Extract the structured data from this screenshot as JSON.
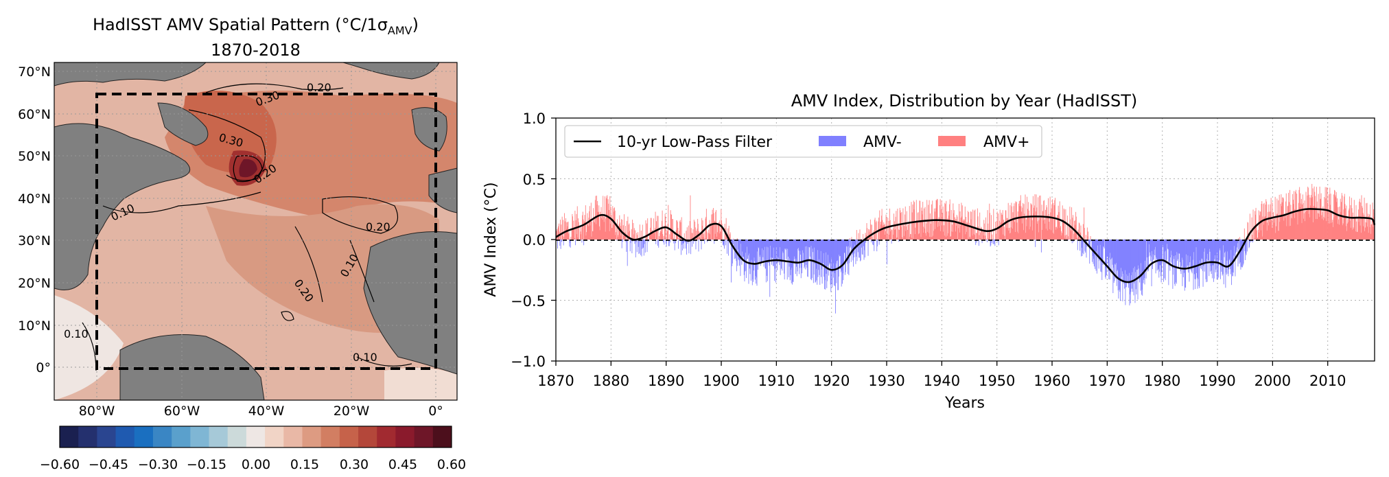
{
  "map_panel": {
    "title_line1": "HadISST AMV Spatial Pattern (°C/1σ",
    "title_sub": "AMV",
    "title_tail": ")",
    "title_line2": "1870-2018",
    "lon_labels": [
      "80°W",
      "60°W",
      "40°W",
      "20°W",
      "0°"
    ],
    "lat_labels": [
      "70°N",
      "60°N",
      "50°N",
      "40°N",
      "30°N",
      "20°N",
      "10°N",
      "0°"
    ],
    "contour_labels": [
      "0.20",
      "0.30",
      "0.30",
      "0.20",
      "0.10",
      "0.20",
      "0.10",
      "0.20",
      "0.10",
      "0.10"
    ],
    "colorbar": {
      "ticks": [
        "−0.60",
        "−0.45",
        "−0.30",
        "−0.15",
        "0.00",
        "0.15",
        "0.30",
        "0.45",
        "0.60"
      ],
      "colors": [
        "#1a2050",
        "#24306e",
        "#2a4590",
        "#1f5ab0",
        "#1a6fc0",
        "#3a86c4",
        "#5aa0cc",
        "#7fb6d4",
        "#a6c9d8",
        "#ccdada",
        "#eee7e4",
        "#f1d4c6",
        "#e9b8a6",
        "#dd9b82",
        "#d27e62",
        "#c6624a",
        "#b4473a",
        "#a12a30",
        "#8a1a2c",
        "#6e1628",
        "#4c0f1c"
      ]
    },
    "colors": {
      "land": "#808080",
      "ocean_base": "#e2b5a4",
      "box": "#000000"
    }
  },
  "chart_data": {
    "type": "bar",
    "title": "AMV Index, Distribution by Year (HadISST)",
    "xlabel": "Years",
    "ylabel": "AMV Index (°C)",
    "xlim": [
      1870,
      2018.5
    ],
    "ylim": [
      -1.0,
      1.0
    ],
    "xticks": [
      1870,
      1880,
      1890,
      1900,
      1910,
      1920,
      1930,
      1940,
      1950,
      1960,
      1970,
      1980,
      1990,
      2000,
      2010
    ],
    "yticks": [
      "1.0",
      "0.5",
      "0.0",
      "−0.5",
      "−1.0"
    ],
    "grid": true,
    "legend_position": "top-left",
    "legend": [
      "10-yr Low-Pass Filter",
      "AMV-",
      "AMV+"
    ],
    "colors": {
      "positive": "#ff8080",
      "negative": "#8080ff",
      "filter": "#000000"
    },
    "low_pass_filter": {
      "x": [
        1870,
        1872,
        1875,
        1878,
        1880,
        1882,
        1884,
        1886,
        1888,
        1890,
        1892,
        1894,
        1896,
        1898,
        1900,
        1902,
        1904,
        1906,
        1908,
        1910,
        1912,
        1914,
        1916,
        1918,
        1920,
        1922,
        1924,
        1926,
        1928,
        1930,
        1933,
        1936,
        1939,
        1942,
        1945,
        1948,
        1950,
        1952,
        1954,
        1957,
        1960,
        1962,
        1964,
        1966,
        1968,
        1970,
        1972,
        1974,
        1976,
        1978,
        1980,
        1982,
        1984,
        1986,
        1988,
        1990,
        1992,
        1994,
        1996,
        1998,
        2000,
        2002,
        2004,
        2006,
        2008,
        2010,
        2012,
        2014,
        2016,
        2018,
        2018.5
      ],
      "y": [
        0.02,
        0.07,
        0.12,
        0.2,
        0.17,
        0.06,
        0.0,
        0.02,
        0.07,
        0.1,
        0.04,
        -0.01,
        0.04,
        0.12,
        0.11,
        -0.05,
        -0.17,
        -0.2,
        -0.18,
        -0.17,
        -0.18,
        -0.19,
        -0.17,
        -0.2,
        -0.25,
        -0.21,
        -0.08,
        0.0,
        0.06,
        0.1,
        0.13,
        0.15,
        0.16,
        0.15,
        0.11,
        0.07,
        0.09,
        0.15,
        0.18,
        0.19,
        0.18,
        0.15,
        0.08,
        -0.02,
        -0.12,
        -0.22,
        -0.32,
        -0.35,
        -0.3,
        -0.2,
        -0.17,
        -0.22,
        -0.24,
        -0.22,
        -0.19,
        -0.19,
        -0.22,
        -0.1,
        0.06,
        0.15,
        0.18,
        0.2,
        0.23,
        0.25,
        0.25,
        0.24,
        0.2,
        0.18,
        0.18,
        0.17,
        0.12
      ]
    }
  }
}
